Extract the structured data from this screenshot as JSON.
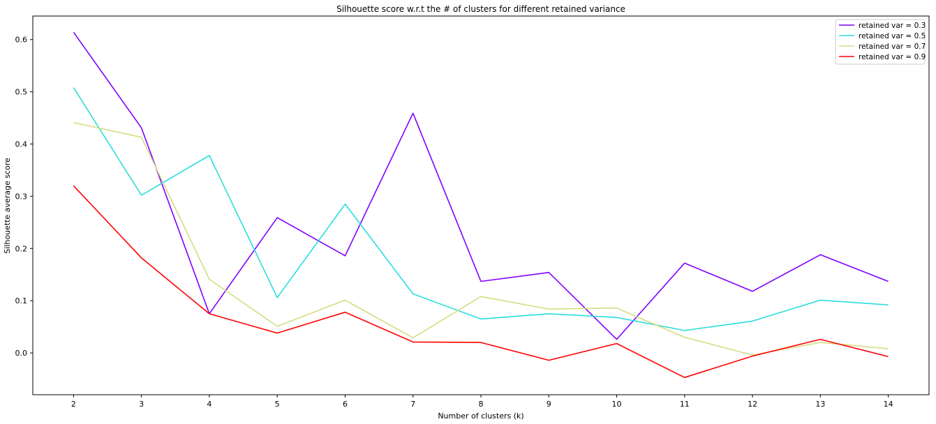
{
  "chart_data": {
    "type": "line",
    "title": "Silhouette score w.r.t the # of clusters for different retained variance",
    "xlabel": "Number of clusters (k)",
    "ylabel": "Silhouette average score",
    "x": [
      2,
      3,
      4,
      5,
      6,
      7,
      8,
      9,
      10,
      11,
      12,
      13,
      14
    ],
    "x_ticks": [
      "2",
      "3",
      "4",
      "5",
      "6",
      "7",
      "8",
      "9",
      "10",
      "11",
      "12",
      "13",
      "14"
    ],
    "y_ticks": [
      "0.0",
      "0.1",
      "0.2",
      "0.3",
      "0.4",
      "0.5",
      "0.6"
    ],
    "xlim": [
      1.4,
      14.6
    ],
    "ylim": [
      -0.08,
      0.645
    ],
    "grid": false,
    "legend_position": "top-right",
    "series": [
      {
        "name": "retained var = 0.3",
        "color": "#8000ff",
        "values": [
          0.614,
          0.431,
          0.075,
          0.259,
          0.186,
          0.459,
          0.137,
          0.154,
          0.026,
          0.172,
          0.118,
          0.188,
          0.137
        ]
      },
      {
        "name": "retained var = 0.5",
        "color": "#2adddd",
        "values": [
          0.508,
          0.302,
          0.378,
          0.106,
          0.285,
          0.113,
          0.065,
          0.075,
          0.068,
          0.043,
          0.061,
          0.101,
          0.092
        ]
      },
      {
        "name": "retained var = 0.7",
        "color": "#d4dd80",
        "values": [
          0.441,
          0.413,
          0.141,
          0.051,
          0.101,
          0.029,
          0.108,
          0.084,
          0.086,
          0.03,
          -0.004,
          0.02,
          0.008
        ]
      },
      {
        "name": "retained var = 0.9",
        "color": "#ff0000",
        "values": [
          0.32,
          0.182,
          0.075,
          0.038,
          0.078,
          0.021,
          0.02,
          -0.014,
          0.018,
          -0.047,
          -0.006,
          0.026,
          -0.007
        ]
      }
    ]
  }
}
